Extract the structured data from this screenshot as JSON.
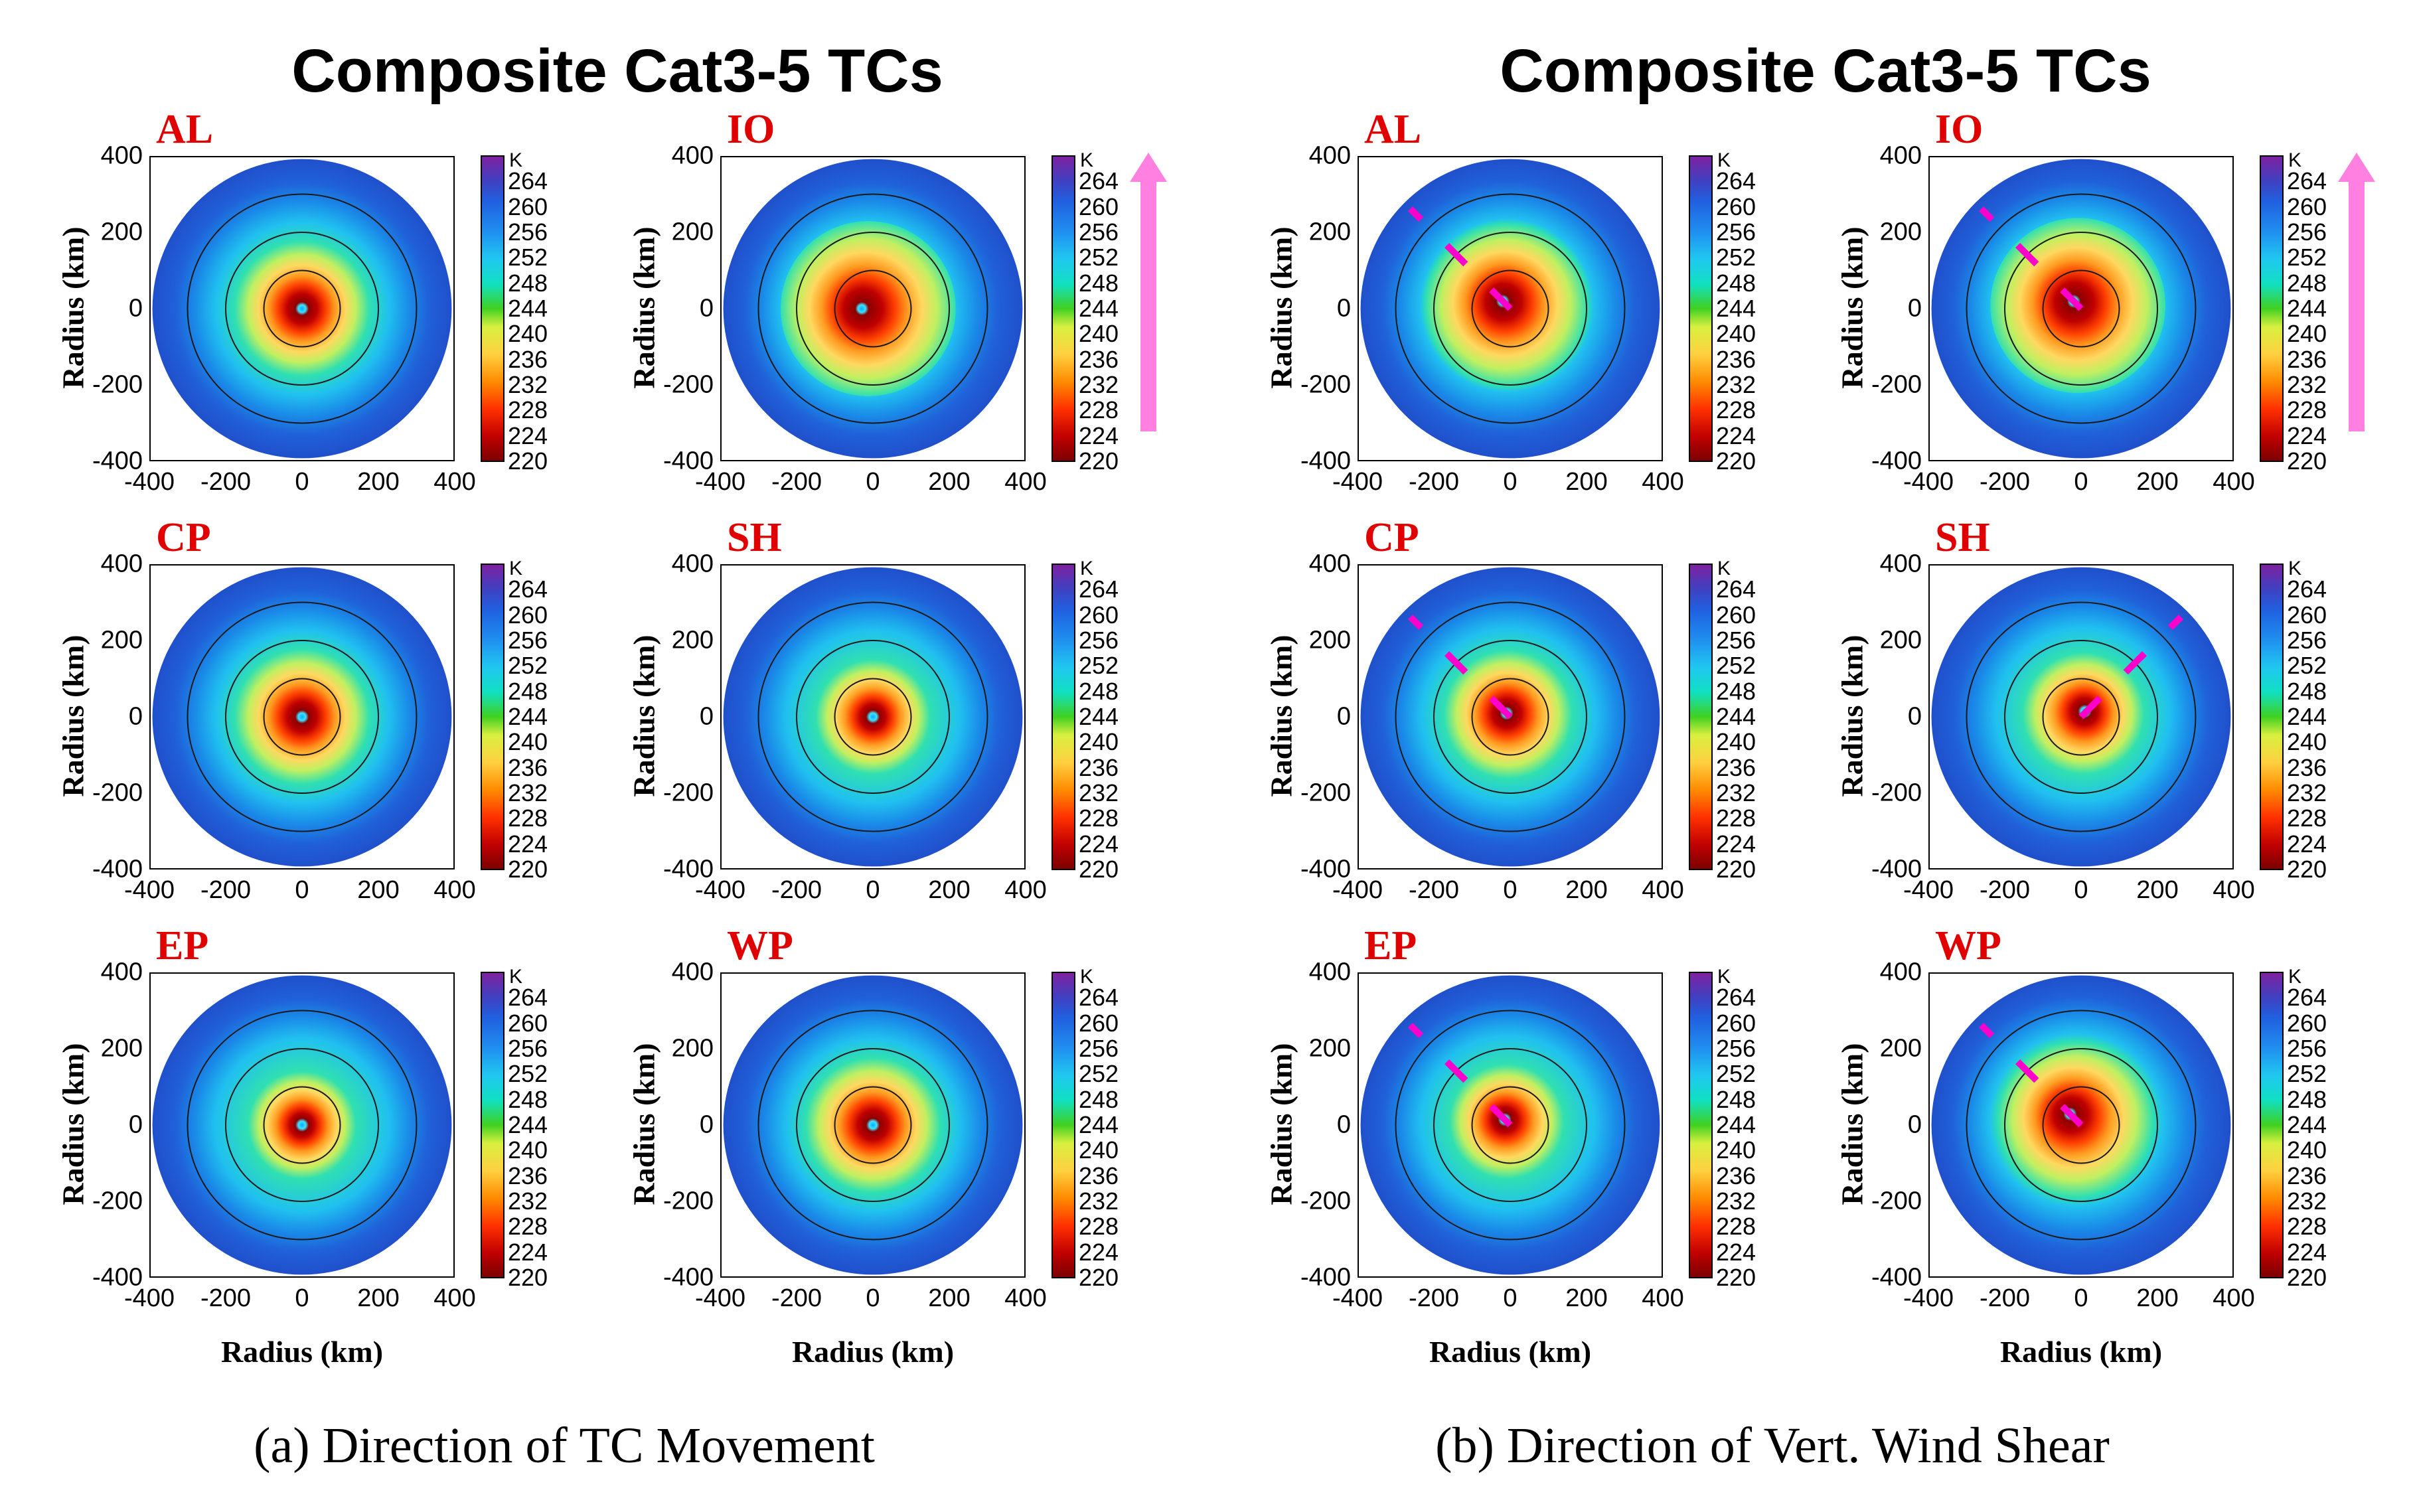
{
  "figure": {
    "titles": [
      "Composite Cat3-5 TCs",
      "Composite Cat3-5 TCs"
    ],
    "captions": [
      "(a) Direction of TC Movement",
      "(b) Direction of Vert. Wind Shear"
    ]
  },
  "chart_data": [
    {
      "type": "heatmap",
      "group": "a",
      "group_title": "Composite Cat3-5 TCs",
      "caption": "(a) Direction of TC Movement",
      "arrow_direction": "north (upward)",
      "arrow_color": "#ff80e0",
      "panels": [
        {
          "basin": "AL",
          "core_offset_km": [
            0,
            0
          ],
          "core_strength": 1.0
        },
        {
          "basin": "IO",
          "core_offset_km": [
            -30,
            0
          ],
          "core_strength": 1.3
        },
        {
          "basin": "CP",
          "core_offset_km": [
            0,
            0
          ],
          "core_strength": 1.0
        },
        {
          "basin": "SH",
          "core_offset_km": [
            0,
            0
          ],
          "core_strength": 0.85
        },
        {
          "basin": "EP",
          "core_offset_km": [
            0,
            0
          ],
          "core_strength": 0.8
        },
        {
          "basin": "WP",
          "core_offset_km": [
            0,
            0
          ],
          "core_strength": 1.0
        }
      ],
      "xlabel": "Radius (km)",
      "ylabel": "Radius (km)",
      "xlim": [
        -400,
        400
      ],
      "ylim": [
        -400,
        400
      ],
      "xticks": [
        "-400",
        "-200",
        "0",
        "200",
        "400"
      ],
      "yticks": [
        "400",
        "200",
        "0",
        "-200",
        "-400"
      ],
      "reference_circles_km": [
        100,
        200,
        300
      ],
      "colorbar": {
        "unit": "K",
        "ticks": [
          "264",
          "260",
          "256",
          "252",
          "248",
          "244",
          "240",
          "236",
          "232",
          "228",
          "224",
          "220"
        ],
        "range": [
          220,
          268
        ]
      }
    },
    {
      "type": "heatmap",
      "group": "b",
      "group_title": "Composite Cat3-5 TCs",
      "caption": "(b) Direction of Vert. Wind Shear",
      "arrow_direction": "north (upward)",
      "arrow_color": "#ff80e0",
      "shear_line_color": "#ff00cc",
      "panels": [
        {
          "basin": "AL",
          "shear_direction": "northwest",
          "core_offset_km": [
            -20,
            20
          ],
          "core_strength": 1.2
        },
        {
          "basin": "IO",
          "shear_direction": "northwest",
          "core_offset_km": [
            -20,
            20
          ],
          "core_strength": 1.3
        },
        {
          "basin": "CP",
          "shear_direction": "northwest",
          "core_offset_km": [
            -10,
            10
          ],
          "core_strength": 0.95
        },
        {
          "basin": "SH",
          "shear_direction": "northeast",
          "core_offset_km": [
            10,
            15
          ],
          "core_strength": 0.9
        },
        {
          "basin": "EP",
          "shear_direction": "northwest",
          "core_offset_km": [
            -15,
            15
          ],
          "core_strength": 0.85
        },
        {
          "basin": "WP",
          "shear_direction": "northwest",
          "core_offset_km": [
            -30,
            30
          ],
          "core_strength": 1.15
        }
      ],
      "xlabel": "Radius (km)",
      "ylabel": "Radius (km)",
      "xlim": [
        -400,
        400
      ],
      "ylim": [
        -400,
        400
      ],
      "xticks": [
        "-400",
        "-200",
        "0",
        "200",
        "400"
      ],
      "yticks": [
        "400",
        "200",
        "0",
        "-200",
        "-400"
      ],
      "reference_circles_km": [
        100,
        200,
        300
      ],
      "colorbar": {
        "unit": "K",
        "ticks": [
          "264",
          "260",
          "256",
          "252",
          "248",
          "244",
          "240",
          "236",
          "232",
          "228",
          "224",
          "220"
        ],
        "range": [
          220,
          268
        ]
      }
    }
  ]
}
